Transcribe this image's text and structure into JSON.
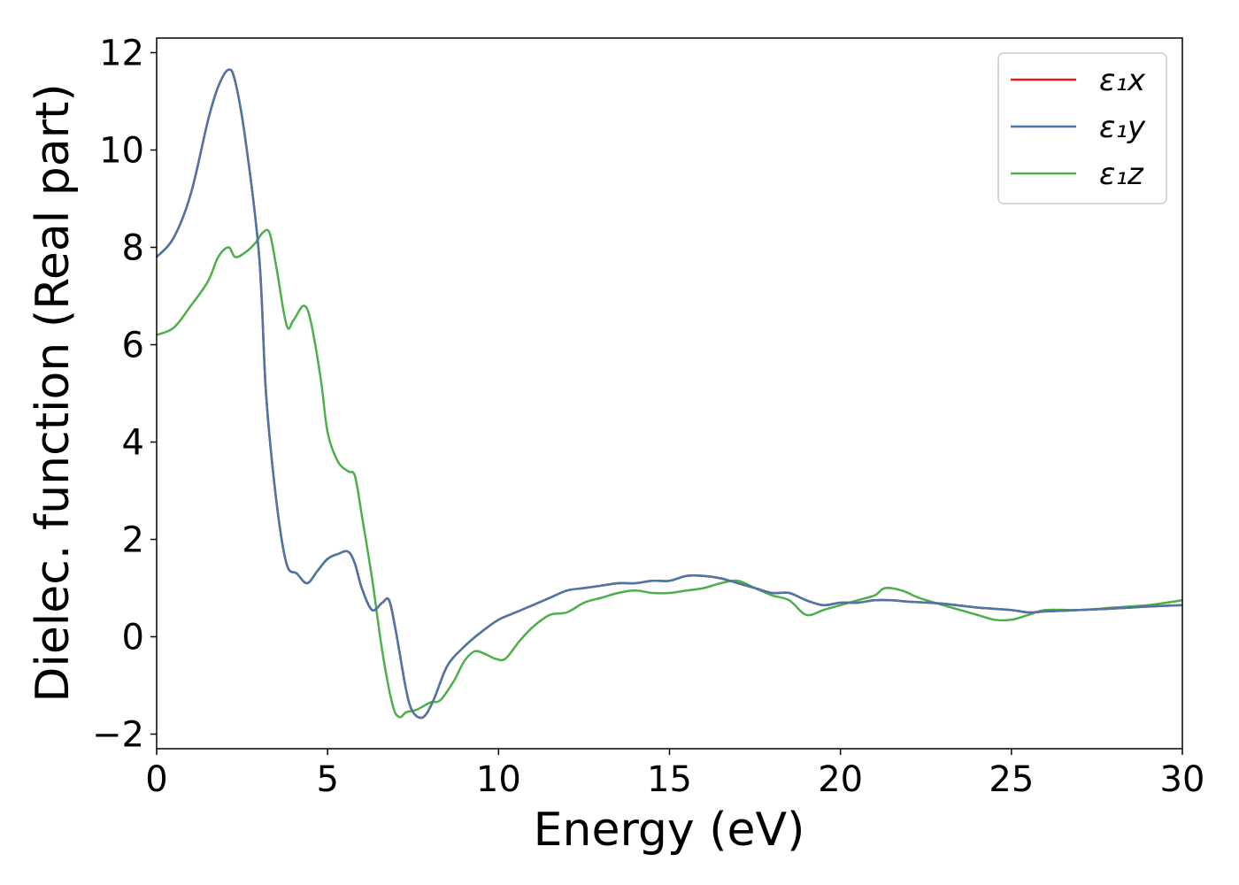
{
  "chart_data": {
    "type": "line",
    "xlabel": "Energy (eV)",
    "ylabel": "Dielec. function (Real part)",
    "xlim": [
      0,
      30
    ],
    "ylim": [
      -2.3,
      12.3
    ],
    "xticks": [
      0,
      5,
      10,
      15,
      20,
      25,
      30
    ],
    "yticks": [
      -2,
      0,
      2,
      4,
      6,
      8,
      10,
      12
    ],
    "xtick_labels": [
      "0",
      "5",
      "10",
      "15",
      "20",
      "25",
      "30"
    ],
    "ytick_labels": [
      "−2",
      "0",
      "2",
      "4",
      "6",
      "8",
      "10",
      "12"
    ],
    "grid": false,
    "legend_position": "top-right",
    "series": [
      {
        "name": "ε₁x",
        "color": "#e41a1c",
        "x": [
          0,
          0.5,
          1.0,
          1.5,
          1.8,
          2.1,
          2.3,
          2.6,
          3.0,
          3.2,
          3.5,
          3.8,
          4.1,
          4.4,
          4.7,
          5.0,
          5.3,
          5.6,
          5.8,
          6.0,
          6.3,
          6.6,
          6.8,
          7.0,
          7.3,
          7.5,
          7.8,
          8.1,
          8.5,
          9.0,
          9.5,
          10.0,
          10.5,
          11.0,
          11.5,
          12.0,
          12.5,
          13.0,
          13.5,
          14.0,
          14.5,
          15.0,
          15.5,
          16.0,
          16.5,
          17.0,
          17.5,
          18.0,
          18.5,
          19.0,
          19.5,
          20.0,
          20.5,
          21.0,
          21.5,
          22.0,
          23.0,
          24.0,
          25.0,
          25.5,
          26.0,
          27.0,
          28.0,
          29.0,
          30.0
        ],
        "y": [
          7.8,
          8.2,
          9.1,
          10.6,
          11.3,
          11.65,
          11.4,
          10.2,
          7.8,
          5.0,
          2.8,
          1.5,
          1.3,
          1.1,
          1.35,
          1.6,
          1.7,
          1.75,
          1.5,
          1.0,
          0.55,
          0.7,
          0.75,
          0.1,
          -1.1,
          -1.55,
          -1.65,
          -1.3,
          -0.6,
          -0.2,
          0.1,
          0.35,
          0.5,
          0.65,
          0.8,
          0.95,
          1.0,
          1.05,
          1.1,
          1.1,
          1.15,
          1.15,
          1.25,
          1.25,
          1.2,
          1.1,
          1.0,
          0.9,
          0.9,
          0.75,
          0.65,
          0.7,
          0.7,
          0.75,
          0.75,
          0.72,
          0.68,
          0.6,
          0.55,
          0.5,
          0.52,
          0.55,
          0.58,
          0.62,
          0.65
        ]
      },
      {
        "name": "ε₁y",
        "color": "#4a76a8",
        "x": [
          0,
          0.5,
          1.0,
          1.5,
          1.8,
          2.1,
          2.3,
          2.6,
          3.0,
          3.2,
          3.5,
          3.8,
          4.1,
          4.4,
          4.7,
          5.0,
          5.3,
          5.6,
          5.8,
          6.0,
          6.3,
          6.6,
          6.8,
          7.0,
          7.3,
          7.5,
          7.8,
          8.1,
          8.5,
          9.0,
          9.5,
          10.0,
          10.5,
          11.0,
          11.5,
          12.0,
          12.5,
          13.0,
          13.5,
          14.0,
          14.5,
          15.0,
          15.5,
          16.0,
          16.5,
          17.0,
          17.5,
          18.0,
          18.5,
          19.0,
          19.5,
          20.0,
          20.5,
          21.0,
          21.5,
          22.0,
          23.0,
          24.0,
          25.0,
          25.5,
          26.0,
          27.0,
          28.0,
          29.0,
          30.0
        ],
        "y": [
          7.8,
          8.2,
          9.1,
          10.6,
          11.3,
          11.65,
          11.4,
          10.2,
          7.8,
          5.0,
          2.8,
          1.5,
          1.3,
          1.1,
          1.35,
          1.6,
          1.7,
          1.75,
          1.5,
          1.0,
          0.55,
          0.7,
          0.75,
          0.1,
          -1.1,
          -1.55,
          -1.65,
          -1.3,
          -0.6,
          -0.2,
          0.1,
          0.35,
          0.5,
          0.65,
          0.8,
          0.95,
          1.0,
          1.05,
          1.1,
          1.1,
          1.15,
          1.15,
          1.25,
          1.25,
          1.2,
          1.1,
          1.0,
          0.9,
          0.9,
          0.75,
          0.65,
          0.7,
          0.7,
          0.75,
          0.75,
          0.72,
          0.68,
          0.6,
          0.55,
          0.5,
          0.52,
          0.55,
          0.58,
          0.62,
          0.65
        ]
      },
      {
        "name": "ε₁z",
        "color": "#4daf4a",
        "x": [
          0,
          0.5,
          1.0,
          1.5,
          1.8,
          2.1,
          2.3,
          2.6,
          2.9,
          3.1,
          3.3,
          3.5,
          3.8,
          4.0,
          4.3,
          4.5,
          4.8,
          5.0,
          5.3,
          5.6,
          5.8,
          6.0,
          6.3,
          6.6,
          6.9,
          7.1,
          7.3,
          7.6,
          8.0,
          8.3,
          8.7,
          9.0,
          9.3,
          9.6,
          9.9,
          10.2,
          10.6,
          11.0,
          11.5,
          12.0,
          12.5,
          13.0,
          13.5,
          14.0,
          14.5,
          15.0,
          15.5,
          16.0,
          16.5,
          17.0,
          17.5,
          18.0,
          18.5,
          19.0,
          19.5,
          20.0,
          20.5,
          21.0,
          21.3,
          21.8,
          22.3,
          23.0,
          24.0,
          24.5,
          25.0,
          25.5,
          26.0,
          27.0,
          28.0,
          29.0,
          30.0
        ],
        "y": [
          6.2,
          6.35,
          6.8,
          7.3,
          7.8,
          8.0,
          7.8,
          7.9,
          8.1,
          8.3,
          8.3,
          7.6,
          6.4,
          6.5,
          6.8,
          6.5,
          5.3,
          4.2,
          3.6,
          3.4,
          3.3,
          2.5,
          1.2,
          -0.3,
          -1.4,
          -1.65,
          -1.55,
          -1.5,
          -1.35,
          -1.3,
          -0.9,
          -0.5,
          -0.3,
          -0.35,
          -0.45,
          -0.45,
          -0.1,
          0.2,
          0.45,
          0.5,
          0.7,
          0.8,
          0.9,
          0.95,
          0.9,
          0.9,
          0.95,
          1.0,
          1.1,
          1.15,
          1.0,
          0.85,
          0.75,
          0.45,
          0.55,
          0.65,
          0.75,
          0.85,
          1.0,
          0.95,
          0.8,
          0.65,
          0.45,
          0.35,
          0.35,
          0.45,
          0.55,
          0.55,
          0.6,
          0.65,
          0.75
        ]
      }
    ]
  }
}
